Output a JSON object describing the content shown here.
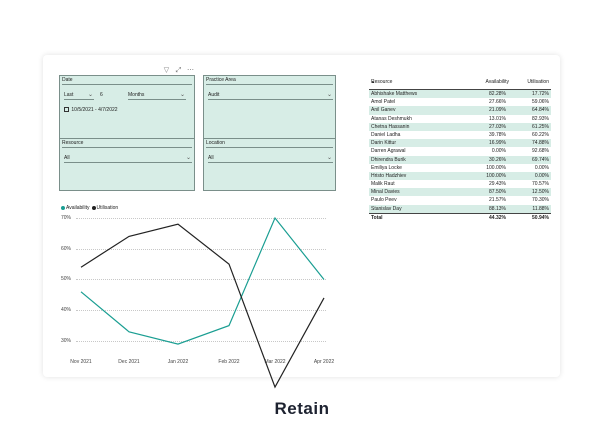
{
  "toolbar": {
    "icons": [
      "filter-icon",
      "focus-mode-icon",
      "more-options-icon"
    ],
    "glyphs": [
      "▽",
      "⤢",
      "⋯"
    ]
  },
  "slicers": {
    "date": {
      "title": "Date",
      "relative": "Last",
      "count": "6",
      "unit": "Months",
      "range": "10/5/2021 - 4/7/2022"
    },
    "practice_area": {
      "title": "Practice Area",
      "value": "Audit"
    },
    "resource": {
      "title": "Resource",
      "value": "All"
    },
    "location": {
      "title": "Location",
      "value": "All"
    }
  },
  "colors": {
    "availability": "#1a9e92",
    "utilisation": "#222222",
    "slicer_bg": "#d7ede6"
  },
  "chart_data": {
    "type": "line",
    "legend": [
      "Availability",
      "Utilisation"
    ],
    "legend_position": "top-left",
    "x": [
      "Nov 2021",
      "Dec 2021",
      "Jan 2022",
      "Feb 2022",
      "Mar 2022",
      "Apr 2022"
    ],
    "series": [
      {
        "name": "Availability",
        "values": [
          46,
          33,
          29,
          35,
          70,
          50
        ]
      },
      {
        "name": "Utilisation",
        "values": [
          54,
          64,
          68,
          55,
          15,
          44
        ]
      }
    ],
    "yticks": [
      "70%",
      "60%",
      "50%",
      "40%",
      "30%"
    ],
    "ylim": [
      18,
      72
    ],
    "grid": true
  },
  "table": {
    "headers": [
      "Resource",
      "Availability",
      "Utilisation"
    ],
    "rows": [
      [
        "Abhishake Matthews",
        "82.28%",
        "17.72%"
      ],
      [
        "Amol Patel",
        "27.66%",
        "59.06%"
      ],
      [
        "Anil Ganev",
        "21.09%",
        "64.84%"
      ],
      [
        "Atanas Deshmukh",
        "13.01%",
        "82.93%"
      ],
      [
        "Chetna Hassanin",
        "27.03%",
        "61.25%"
      ],
      [
        "Daniel Ladha",
        "39.78%",
        "60.22%"
      ],
      [
        "Darin Kittur",
        "16.99%",
        "74.88%"
      ],
      [
        "Darren Agrawal",
        "0.00%",
        "92.68%"
      ],
      [
        "Dhirendra Burik",
        "30.26%",
        "69.74%"
      ],
      [
        "Emiliya Locke",
        "100.00%",
        "0.00%"
      ],
      [
        "Hristo Hadzhiev",
        "100.00%",
        "0.00%"
      ],
      [
        "Malik Raut",
        "29.43%",
        "70.57%"
      ],
      [
        "Minal Davies",
        "87.50%",
        "12.50%"
      ],
      [
        "Paulo Peev",
        "21.57%",
        "70.30%"
      ],
      [
        "Stanislav Day",
        "88.13%",
        "11.88%"
      ]
    ],
    "total": [
      "Total",
      "44.32%",
      "50.94%"
    ]
  },
  "brand": {
    "logo_text": "Retain"
  }
}
